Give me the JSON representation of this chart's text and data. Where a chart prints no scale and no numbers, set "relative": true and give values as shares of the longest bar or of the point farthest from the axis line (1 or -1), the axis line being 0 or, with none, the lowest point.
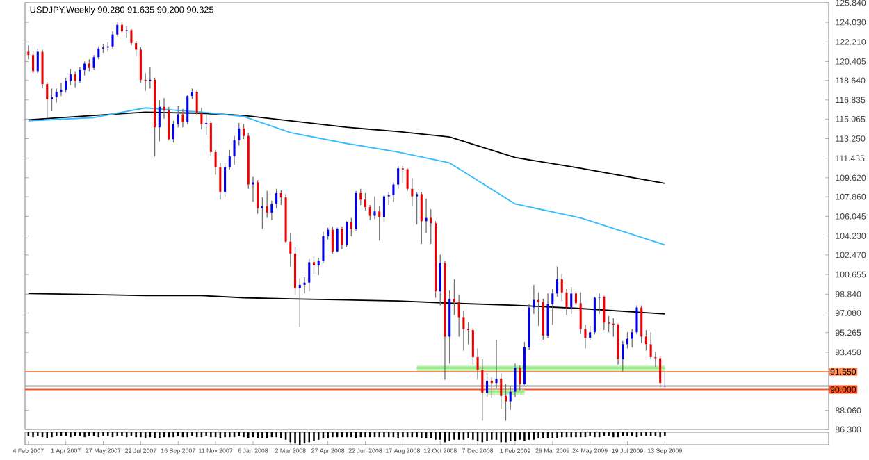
{
  "chart_data": [
    {
      "type": "candlestick",
      "title": "USDJPY,Weekly  90.280 91.635 90.200 90.325",
      "x": [
        "2007-02-04",
        "2007-02-11",
        "2007-02-18",
        "2007-02-25",
        "2007-03-04",
        "2007-03-11",
        "2007-03-18",
        "2007-03-25",
        "2007-04-01",
        "2007-04-08",
        "2007-04-15",
        "2007-04-22",
        "2007-04-29",
        "2007-05-06",
        "2007-05-13",
        "2007-05-20",
        "2007-05-27",
        "2007-06-03",
        "2007-06-10",
        "2007-06-17",
        "2007-06-24",
        "2007-07-01",
        "2007-07-08",
        "2007-07-15",
        "2007-07-22",
        "2007-07-29",
        "2007-08-05",
        "2007-08-12",
        "2007-08-19",
        "2007-08-26",
        "2007-09-02",
        "2007-09-09",
        "2007-09-16",
        "2007-09-23",
        "2007-09-30",
        "2007-10-07",
        "2007-10-14",
        "2007-10-21",
        "2007-10-28",
        "2007-11-04",
        "2007-11-11",
        "2007-11-18",
        "2007-11-25",
        "2007-12-02",
        "2007-12-09",
        "2007-12-16",
        "2007-12-23",
        "2007-12-30",
        "2008-01-06",
        "2008-01-13",
        "2008-01-20",
        "2008-01-27",
        "2008-02-03",
        "2008-02-10",
        "2008-02-17",
        "2008-02-24",
        "2008-03-02",
        "2008-03-09",
        "2008-03-16",
        "2008-03-23",
        "2008-03-30",
        "2008-04-06",
        "2008-04-13",
        "2008-04-20",
        "2008-04-27",
        "2008-05-04",
        "2008-05-11",
        "2008-05-18",
        "2008-05-25",
        "2008-06-01",
        "2008-06-08",
        "2008-06-15",
        "2008-06-22",
        "2008-06-29",
        "2008-07-06",
        "2008-07-13",
        "2008-07-20",
        "2008-07-27",
        "2008-08-03",
        "2008-08-10",
        "2008-08-17",
        "2008-08-24",
        "2008-08-31",
        "2008-09-07",
        "2008-09-14",
        "2008-09-21",
        "2008-09-28",
        "2008-10-05",
        "2008-10-12",
        "2008-10-19",
        "2008-10-26",
        "2008-11-02",
        "2008-11-09",
        "2008-11-16",
        "2008-11-23",
        "2008-11-30",
        "2008-12-07",
        "2008-12-14",
        "2008-12-21",
        "2008-12-28",
        "2009-01-04",
        "2009-01-11",
        "2009-01-18",
        "2009-01-25",
        "2009-02-01",
        "2009-02-08",
        "2009-02-15",
        "2009-02-22",
        "2009-03-01",
        "2009-03-08",
        "2009-03-15",
        "2009-03-22",
        "2009-03-29",
        "2009-04-05",
        "2009-04-12",
        "2009-04-19",
        "2009-04-26",
        "2009-05-03",
        "2009-05-10",
        "2009-05-17",
        "2009-05-24",
        "2009-05-31",
        "2009-06-07",
        "2009-06-14",
        "2009-06-21",
        "2009-06-28",
        "2009-07-05",
        "2009-07-12",
        "2009-07-19",
        "2009-07-26",
        "2009-08-02",
        "2009-08-09",
        "2009-08-16",
        "2009-08-23",
        "2009-08-30",
        "2009-09-06",
        "2009-09-13"
      ],
      "ohlc": [
        [
          121.3,
          121.9,
          120.6,
          121.0
        ],
        [
          121.0,
          121.4,
          119.3,
          119.5
        ],
        [
          119.5,
          121.6,
          119.3,
          121.3
        ],
        [
          121.3,
          121.5,
          117.9,
          118.3
        ],
        [
          118.3,
          118.5,
          115.2,
          116.9
        ],
        [
          116.9,
          117.9,
          115.8,
          117.1
        ],
        [
          117.1,
          117.9,
          116.6,
          117.6
        ],
        [
          117.6,
          118.4,
          117.2,
          117.8
        ],
        [
          117.8,
          118.9,
          117.5,
          118.6
        ],
        [
          118.6,
          119.7,
          118.2,
          119.2
        ],
        [
          119.2,
          119.5,
          118.0,
          118.6
        ],
        [
          118.6,
          119.9,
          118.4,
          119.6
        ],
        [
          119.6,
          120.4,
          119.1,
          120.2
        ],
        [
          120.2,
          120.6,
          119.5,
          119.8
        ],
        [
          119.8,
          121.0,
          119.6,
          120.8
        ],
        [
          120.8,
          121.8,
          120.6,
          121.6
        ],
        [
          121.6,
          122.0,
          121.2,
          121.7
        ],
        [
          121.7,
          122.2,
          121.3,
          121.8
        ],
        [
          121.8,
          123.2,
          121.6,
          122.9
        ],
        [
          122.9,
          124.1,
          122.7,
          123.8
        ],
        [
          123.8,
          124.1,
          123.0,
          123.2
        ],
        [
          123.2,
          123.7,
          122.6,
          123.3
        ],
        [
          123.3,
          123.4,
          121.9,
          122.1
        ],
        [
          122.1,
          122.3,
          120.9,
          121.5
        ],
        [
          121.5,
          121.7,
          118.4,
          118.7
        ],
        [
          118.7,
          119.3,
          117.7,
          118.6
        ],
        [
          118.6,
          119.9,
          117.9,
          118.7
        ],
        [
          118.7,
          118.9,
          111.6,
          114.3
        ],
        [
          114.3,
          116.8,
          113.0,
          116.2
        ],
        [
          116.2,
          117.0,
          115.1,
          115.9
        ],
        [
          115.9,
          116.2,
          113.1,
          113.2
        ],
        [
          113.2,
          114.9,
          112.9,
          114.6
        ],
        [
          114.6,
          116.3,
          114.3,
          115.5
        ],
        [
          115.5,
          116.0,
          114.3,
          114.8
        ],
        [
          114.8,
          117.3,
          114.6,
          117.2
        ],
        [
          117.2,
          117.9,
          116.9,
          117.6
        ],
        [
          117.6,
          117.8,
          115.4,
          115.6
        ],
        [
          115.6,
          116.1,
          114.1,
          114.6
        ],
        [
          114.6,
          115.5,
          113.6,
          114.7
        ],
        [
          114.7,
          114.9,
          111.6,
          112.0
        ],
        [
          112.0,
          112.2,
          109.9,
          110.6
        ],
        [
          110.6,
          111.0,
          107.6,
          108.3
        ],
        [
          108.3,
          111.0,
          107.9,
          110.6
        ],
        [
          110.6,
          112.2,
          110.4,
          111.6
        ],
        [
          111.6,
          113.5,
          110.8,
          113.1
        ],
        [
          113.1,
          114.7,
          112.6,
          114.2
        ],
        [
          114.2,
          114.6,
          113.2,
          113.5
        ],
        [
          113.5,
          113.8,
          108.6,
          109.0
        ],
        [
          109.0,
          109.7,
          107.4,
          109.2
        ],
        [
          109.2,
          109.4,
          106.3,
          106.8
        ],
        [
          106.8,
          107.8,
          104.9,
          107.0
        ],
        [
          107.0,
          108.4,
          105.9,
          106.4
        ],
        [
          106.4,
          107.5,
          105.7,
          107.2
        ],
        [
          107.2,
          108.6,
          106.8,
          108.2
        ],
        [
          108.2,
          108.5,
          107.1,
          107.8
        ],
        [
          107.8,
          108.1,
          103.6,
          103.7
        ],
        [
          103.7,
          104.5,
          101.4,
          102.6
        ],
        [
          102.6,
          103.2,
          98.8,
          99.4
        ],
        [
          99.4,
          100.3,
          95.8,
          99.7
        ],
        [
          99.7,
          100.4,
          98.9,
          99.9
        ],
        [
          99.9,
          102.1,
          99.1,
          101.8
        ],
        [
          101.8,
          102.3,
          100.7,
          101.5
        ],
        [
          101.5,
          102.2,
          100.6,
          101.9
        ],
        [
          101.9,
          104.6,
          101.7,
          104.2
        ],
        [
          104.2,
          105.0,
          103.9,
          104.8
        ],
        [
          104.8,
          105.1,
          102.6,
          102.8
        ],
        [
          102.8,
          105.0,
          102.7,
          104.9
        ],
        [
          104.9,
          105.1,
          103.0,
          103.4
        ],
        [
          103.4,
          105.6,
          103.2,
          105.5
        ],
        [
          105.5,
          105.9,
          104.2,
          104.9
        ],
        [
          104.9,
          108.4,
          104.7,
          108.2
        ],
        [
          108.2,
          108.6,
          107.1,
          107.6
        ],
        [
          107.6,
          108.2,
          106.6,
          106.9
        ],
        [
          106.9,
          107.1,
          105.7,
          106.1
        ],
        [
          106.1,
          107.9,
          105.8,
          106.5
        ],
        [
          106.5,
          107.0,
          103.8,
          106.0
        ],
        [
          106.0,
          108.0,
          105.5,
          107.9
        ],
        [
          107.9,
          108.3,
          107.1,
          108.0
        ],
        [
          108.0,
          109.2,
          107.4,
          109.0
        ],
        [
          109.0,
          110.7,
          108.6,
          110.5
        ],
        [
          110.5,
          110.7,
          109.1,
          110.4
        ],
        [
          110.4,
          110.5,
          108.4,
          108.6
        ],
        [
          108.6,
          109.6,
          107.0,
          107.9
        ],
        [
          107.9,
          108.3,
          105.3,
          108.1
        ],
        [
          108.1,
          108.3,
          103.5,
          105.6
        ],
        [
          105.6,
          107.7,
          104.5,
          105.9
        ],
        [
          105.9,
          106.7,
          103.5,
          105.4
        ],
        [
          105.4,
          105.6,
          98.5,
          99.1
        ],
        [
          99.1,
          102.5,
          97.8,
          101.7
        ],
        [
          101.7,
          101.9,
          90.9,
          94.9
        ],
        [
          94.9,
          99.2,
          92.4,
          98.4
        ],
        [
          98.4,
          100.2,
          96.9,
          98.1
        ],
        [
          98.1,
          98.8,
          94.9,
          96.7
        ],
        [
          96.7,
          97.3,
          93.6,
          95.6
        ],
        [
          95.6,
          96.2,
          94.2,
          95.5
        ],
        [
          95.5,
          95.7,
          92.3,
          93.0
        ],
        [
          93.0,
          93.8,
          90.9,
          91.8
        ],
        [
          91.8,
          92.8,
          87.1,
          89.7
        ],
        [
          89.7,
          91.5,
          89.3,
          90.8
        ],
        [
          90.8,
          91.1,
          89.2,
          90.6
        ],
        [
          90.6,
          94.6,
          90.1,
          91.0
        ],
        [
          91.0,
          91.5,
          88.2,
          89.4
        ],
        [
          89.4,
          90.5,
          87.1,
          88.9
        ],
        [
          88.9,
          90.3,
          88.1,
          89.8
        ],
        [
          89.8,
          92.4,
          89.3,
          92.0
        ],
        [
          92.0,
          92.2,
          89.9,
          90.5
        ],
        [
          90.5,
          94.4,
          90.4,
          93.9
        ],
        [
          93.9,
          97.9,
          93.7,
          97.6
        ],
        [
          97.6,
          99.7,
          97.0,
          98.3
        ],
        [
          98.3,
          99.0,
          95.9,
          98.1
        ],
        [
          98.1,
          98.4,
          94.6,
          95.0
        ],
        [
          95.0,
          98.9,
          94.8,
          97.9
        ],
        [
          97.9,
          99.3,
          96.0,
          98.9
        ],
        [
          98.9,
          101.4,
          98.6,
          100.2
        ],
        [
          100.2,
          100.7,
          98.2,
          99.0
        ],
        [
          99.0,
          99.3,
          96.9,
          97.6
        ],
        [
          97.6,
          99.5,
          97.0,
          98.9
        ],
        [
          98.9,
          99.1,
          97.8,
          98.0
        ],
        [
          98.0,
          99.0,
          95.2,
          95.6
        ],
        [
          95.6,
          96.0,
          93.8,
          94.8
        ],
        [
          94.8,
          95.9,
          94.6,
          95.3
        ],
        [
          95.3,
          98.6,
          95.1,
          98.5
        ],
        [
          98.5,
          98.9,
          97.0,
          98.6
        ],
        [
          98.6,
          98.7,
          95.5,
          96.2
        ],
        [
          96.2,
          96.8,
          95.3,
          96.1
        ],
        [
          96.1,
          96.6,
          94.9,
          96.0
        ],
        [
          96.0,
          96.1,
          92.3,
          92.8
        ],
        [
          92.8,
          94.5,
          91.7,
          94.2
        ],
        [
          94.2,
          95.3,
          93.8,
          94.7
        ],
        [
          94.7,
          95.6,
          93.9,
          95.3
        ],
        [
          95.3,
          97.8,
          95.1,
          97.6
        ],
        [
          97.6,
          97.8,
          94.3,
          94.9
        ],
        [
          94.9,
          95.5,
          93.6,
          94.2
        ],
        [
          94.2,
          95.3,
          92.8,
          93.0
        ],
        [
          93.0,
          93.5,
          92.1,
          92.9
        ],
        [
          92.9,
          93.1,
          90.2,
          90.6
        ],
        [
          90.28,
          91.635,
          90.2,
          90.325
        ]
      ],
      "series": [
        {
          "type": "line",
          "color": "#000000",
          "x": [
            "2007-02-04",
            "2007-05-13",
            "2007-07-29",
            "2007-10-21",
            "2007-12-23",
            "2008-03-02",
            "2008-05-25",
            "2008-08-10",
            "2008-10-26",
            "2009-02-01",
            "2009-05-10",
            "2009-09-13"
          ],
          "values": [
            115.0,
            115.4,
            115.7,
            115.6,
            115.4,
            114.9,
            114.3,
            113.9,
            113.4,
            111.5,
            110.5,
            109.1
          ]
        },
        {
          "type": "line",
          "color": "#33bbff",
          "x": [
            "2007-02-04",
            "2007-05-13",
            "2007-07-29",
            "2007-10-21",
            "2007-12-23",
            "2008-03-02",
            "2008-05-25",
            "2008-08-10",
            "2008-10-26",
            "2009-02-01",
            "2009-05-10",
            "2009-09-13"
          ],
          "values": [
            114.9,
            115.2,
            116.1,
            115.7,
            115.3,
            113.8,
            112.8,
            112.0,
            111.0,
            107.2,
            105.9,
            103.4
          ]
        },
        {
          "type": "line",
          "color": "#000000",
          "x": [
            "2007-02-04",
            "2007-05-13",
            "2007-07-29",
            "2007-10-21",
            "2007-12-23",
            "2008-03-02",
            "2008-05-25",
            "2008-08-10",
            "2008-10-26",
            "2009-02-01",
            "2009-05-10",
            "2009-09-13"
          ],
          "values": [
            98.9,
            98.8,
            98.7,
            98.7,
            98.5,
            98.4,
            98.3,
            98.2,
            98.0,
            97.8,
            97.5,
            97.0
          ]
        },
        {
          "type": "line",
          "color": "#99ee88",
          "x": [
            "2008-09-07",
            "2009-09-13"
          ],
          "values": [
            92.0,
            92.0
          ],
          "lower": [
            91.7,
            91.7
          ],
          "upper": [
            92.2,
            92.2
          ]
        },
        {
          "type": "line",
          "color": "#99ee88",
          "x": [
            "2008-12-21",
            "2009-02-15"
          ],
          "values": [
            89.8,
            89.8
          ],
          "lower": [
            89.5,
            89.5
          ],
          "upper": [
            90.0,
            90.0
          ]
        }
      ],
      "ref_lines": [
        {
          "axis": "y",
          "value": 91.65,
          "label": "91.650",
          "color": "#ff8855"
        },
        {
          "axis": "y",
          "value": 90.325,
          "color": "#999999"
        },
        {
          "axis": "y",
          "value": 90.0,
          "label": "90.000",
          "color": "#ff5522"
        }
      ],
      "xlim": [
        "2007-01-30",
        "2010-05-16"
      ],
      "ylim": [
        86.3,
        125.84
      ],
      "yticks": [
        {
          "value": 125.84,
          "label": "125.840"
        },
        {
          "value": 124.03,
          "label": "124.030"
        },
        {
          "value": 122.21,
          "label": "122.210"
        },
        {
          "value": 120.405,
          "label": "120.405"
        },
        {
          "value": 118.64,
          "label": "118.640"
        },
        {
          "value": 116.835,
          "label": "116.835"
        },
        {
          "value": 115.065,
          "label": "115.065"
        },
        {
          "value": 113.25,
          "label": "113.250"
        },
        {
          "value": 111.435,
          "label": "111.435"
        },
        {
          "value": 109.62,
          "label": "109.620"
        },
        {
          "value": 107.86,
          "label": "107.860"
        },
        {
          "value": 106.045,
          "label": "106.045"
        },
        {
          "value": 104.23,
          "label": "104.230"
        },
        {
          "value": 102.47,
          "label": "102.470"
        },
        {
          "value": 100.655,
          "label": "100.655"
        },
        {
          "value": 98.84,
          "label": "98.840"
        },
        {
          "value": 97.08,
          "label": "97.080"
        },
        {
          "value": 95.265,
          "label": "95.265"
        },
        {
          "value": 93.45,
          "label": "93.450"
        },
        {
          "value": 88.06,
          "label": "88.060"
        },
        {
          "value": 86.3,
          "label": "86.300"
        }
      ],
      "tick_labels": "y"
    },
    {
      "type": "bar",
      "relative": true,
      "color": "#000000",
      "x": [
        "2007-02-04",
        "2007-02-11",
        "2007-02-18",
        "2007-02-25",
        "2007-03-04",
        "2007-03-11",
        "2007-03-18",
        "2007-03-25",
        "2007-04-01",
        "2007-04-08",
        "2007-04-15",
        "2007-04-22",
        "2007-04-29",
        "2007-05-06",
        "2007-05-13",
        "2007-05-20",
        "2007-05-27",
        "2007-06-03",
        "2007-06-10",
        "2007-06-17",
        "2007-06-24",
        "2007-07-01",
        "2007-07-08",
        "2007-07-15",
        "2007-07-22",
        "2007-07-29",
        "2007-08-05",
        "2007-08-12",
        "2007-08-19",
        "2007-08-26",
        "2007-09-02",
        "2007-09-09",
        "2007-09-16",
        "2007-09-23",
        "2007-09-30",
        "2007-10-07",
        "2007-10-14",
        "2007-10-21",
        "2007-10-28",
        "2007-11-04",
        "2007-11-11",
        "2007-11-18",
        "2007-11-25",
        "2007-12-02",
        "2007-12-09",
        "2007-12-16",
        "2007-12-23",
        "2007-12-30",
        "2008-01-06",
        "2008-01-13",
        "2008-01-20",
        "2008-01-27",
        "2008-02-03",
        "2008-02-10",
        "2008-02-17",
        "2008-02-24",
        "2008-03-02",
        "2008-03-09",
        "2008-03-16",
        "2008-03-23",
        "2008-03-30",
        "2008-04-06",
        "2008-04-13",
        "2008-04-20",
        "2008-04-27",
        "2008-05-04",
        "2008-05-11",
        "2008-05-18",
        "2008-05-25",
        "2008-06-01",
        "2008-06-08",
        "2008-06-15",
        "2008-06-22",
        "2008-06-29",
        "2008-07-06",
        "2008-07-13",
        "2008-07-20",
        "2008-07-27",
        "2008-08-03",
        "2008-08-10",
        "2008-08-17",
        "2008-08-24",
        "2008-08-31",
        "2008-09-07",
        "2008-09-14",
        "2008-09-21",
        "2008-09-28",
        "2008-10-05",
        "2008-10-12",
        "2008-10-19",
        "2008-10-26",
        "2008-11-02",
        "2008-11-09",
        "2008-11-16",
        "2008-11-23",
        "2008-11-30",
        "2008-12-07",
        "2008-12-14",
        "2008-12-21",
        "2008-12-28",
        "2009-01-04",
        "2009-01-11",
        "2009-01-18",
        "2009-01-25",
        "2009-02-01",
        "2009-02-08",
        "2009-02-15",
        "2009-02-22",
        "2009-03-01",
        "2009-03-08",
        "2009-03-15",
        "2009-03-22",
        "2009-03-29",
        "2009-04-05",
        "2009-04-12",
        "2009-04-19",
        "2009-04-26",
        "2009-05-03",
        "2009-05-10",
        "2009-05-17",
        "2009-05-24",
        "2009-05-31",
        "2009-06-07",
        "2009-06-14",
        "2009-06-21",
        "2009-06-28",
        "2009-07-05",
        "2009-07-12",
        "2009-07-19",
        "2009-07-26",
        "2009-08-02",
        "2009-08-09",
        "2009-08-16",
        "2009-08-23",
        "2009-08-30",
        "2009-09-06",
        "2009-09-13"
      ],
      "values": [
        -0.3,
        -0.4,
        -0.3,
        -0.4,
        -0.5,
        -0.4,
        -0.3,
        -0.3,
        -0.3,
        -0.4,
        -0.3,
        -0.3,
        -0.4,
        -0.3,
        -0.3,
        -0.4,
        -0.3,
        -0.3,
        -0.4,
        -0.3,
        -0.3,
        -0.4,
        -0.3,
        -0.4,
        -0.4,
        -0.5,
        -0.4,
        -0.5,
        -0.5,
        -0.4,
        -0.4,
        -0.4,
        -0.3,
        -0.4,
        -0.4,
        -0.3,
        -0.4,
        -0.4,
        -0.3,
        -0.4,
        -0.4,
        -0.5,
        -0.4,
        -0.4,
        -0.4,
        -0.3,
        -0.4,
        -0.5,
        -0.4,
        -0.5,
        -0.5,
        -0.5,
        -0.4,
        -0.4,
        -0.5,
        -0.6,
        -0.8,
        -0.9,
        -1.0,
        -0.9,
        -0.8,
        -0.7,
        -0.6,
        -0.5,
        -0.5,
        -0.4,
        -0.4,
        -0.4,
        -0.4,
        -0.4,
        -0.5,
        -0.4,
        -0.4,
        -0.4,
        -0.4,
        -0.4,
        -0.4,
        -0.4,
        -0.4,
        -0.5,
        -0.4,
        -0.4,
        -0.4,
        -0.4,
        -0.5,
        -0.5,
        -0.5,
        -0.6,
        -0.6,
        -0.8,
        -0.7,
        -0.6,
        -0.6,
        -0.6,
        -0.5,
        -0.6,
        -0.7,
        -0.8,
        -0.7,
        -0.6,
        -0.6,
        -0.8,
        -0.8,
        -0.7,
        -0.7,
        -0.6,
        -0.7,
        -0.6,
        -0.6,
        -0.5,
        -0.5,
        -0.5,
        -0.5,
        -0.5,
        -0.4,
        -0.4,
        -0.4,
        -0.4,
        -0.4,
        -0.4,
        -0.3,
        -0.4,
        -0.4,
        -0.3,
        -0.3,
        -0.4,
        -0.4,
        -0.3,
        -0.3,
        -0.3,
        -0.4,
        -0.3,
        -0.3,
        -0.3,
        -0.3,
        -0.4,
        -0.3
      ],
      "xlim": [
        "2007-01-30",
        "2010-05-16"
      ],
      "xticks": [
        {
          "value": "2007-02-04",
          "label": "4 Feb 2007"
        },
        {
          "value": "2007-04-01",
          "label": "1 Apr 2007"
        },
        {
          "value": "2007-05-27",
          "label": "27 May 2007"
        },
        {
          "value": "2007-07-22",
          "label": "22 Jul 2007"
        },
        {
          "value": "2007-09-16",
          "label": "16 Sep 2007"
        },
        {
          "value": "2007-11-11",
          "label": "11 Nov 2007"
        },
        {
          "value": "2008-01-06",
          "label": "6 Jan 2008"
        },
        {
          "value": "2008-03-02",
          "label": "2 Mar 2008"
        },
        {
          "value": "2008-04-27",
          "label": "27 Apr 2008"
        },
        {
          "value": "2008-06-22",
          "label": "22 Jun 2008"
        },
        {
          "value": "2008-08-17",
          "label": "17 Aug 2008"
        },
        {
          "value": "2008-10-12",
          "label": "12 Oct 2008"
        },
        {
          "value": "2008-12-07",
          "label": "7 Dec 2008"
        },
        {
          "value": "2009-02-01",
          "label": "1 Feb 2009"
        },
        {
          "value": "2009-03-29",
          "label": "29 Mar 2009"
        },
        {
          "value": "2009-05-24",
          "label": "24 May 2009"
        },
        {
          "value": "2009-07-19",
          "label": "19 Jul 2009"
        },
        {
          "value": "2009-09-13",
          "label": "13 Sep 2009"
        }
      ],
      "tick_labels": "x"
    }
  ]
}
